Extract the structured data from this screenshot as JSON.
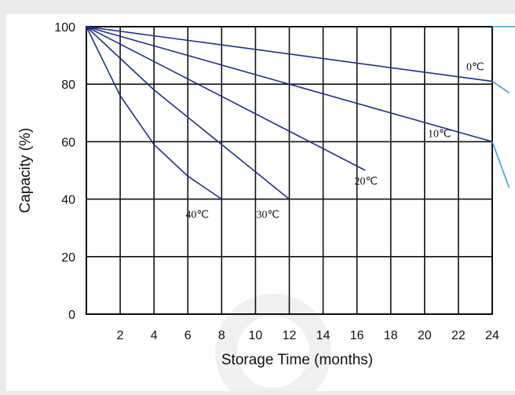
{
  "chart_data": {
    "type": "line",
    "xlabel": "Storage Time (months)",
    "ylabel": "Capacity (%)",
    "xlim": [
      0,
      24
    ],
    "ylim": [
      0,
      100
    ],
    "x_ticks": [
      2,
      4,
      6,
      8,
      10,
      12,
      14,
      16,
      18,
      20,
      22,
      24
    ],
    "y_ticks": [
      0,
      20,
      40,
      60,
      80,
      100
    ],
    "grid": true,
    "line_color": "#1f2f8f",
    "series": [
      {
        "name": "0℃",
        "x": [
          0,
          24
        ],
        "y": [
          100,
          81
        ]
      },
      {
        "name": "10℃",
        "x": [
          0,
          24
        ],
        "y": [
          100,
          60
        ]
      },
      {
        "name": "20℃",
        "x": [
          0,
          16.5
        ],
        "y": [
          100,
          50
        ]
      },
      {
        "name": "30℃",
        "x": [
          0,
          4,
          8,
          12
        ],
        "y": [
          100,
          78,
          59,
          40
        ]
      },
      {
        "name": "40℃",
        "x": [
          0,
          1,
          2,
          4,
          6,
          8
        ],
        "y": [
          100,
          88,
          76,
          59,
          48,
          40
        ]
      }
    ],
    "continuation_lines": [
      {
        "x": [
          24,
          25
        ],
        "y": [
          81,
          77
        ]
      },
      {
        "x": [
          24,
          25
        ],
        "y": [
          60,
          44
        ]
      }
    ]
  }
}
